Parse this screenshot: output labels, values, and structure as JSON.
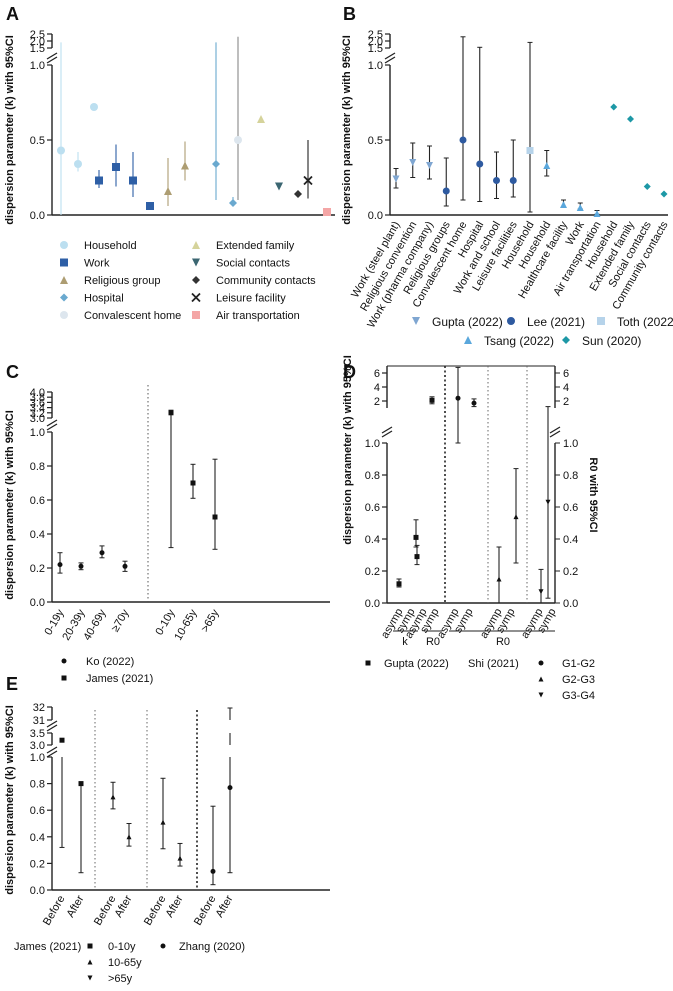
{
  "figure": {
    "ylabel": "dispersion parameter (k) with 95%CI"
  },
  "chart_data": [
    {
      "panel": "A",
      "type": "scatter",
      "title": "",
      "ylabel": "dispersion parameter (k) with 95%CI",
      "y_ticks_lower": [
        "0.0",
        "0.5",
        "1.0"
      ],
      "y_ticks_upper": [
        "1.5",
        "2.0",
        "2.5"
      ],
      "ylim_lower": [
        0,
        1.0
      ],
      "ylim_upper": [
        1.5,
        2.5
      ],
      "legend_items": [
        {
          "label": "Household",
          "color": "#bcdff0",
          "marker": "circle"
        },
        {
          "label": "Work",
          "color": "#2e5fa6",
          "marker": "square"
        },
        {
          "label": "Religious group",
          "color": "#ad9d72",
          "marker": "triangle-up"
        },
        {
          "label": "Hospital",
          "color": "#6aa9cf",
          "marker": "diamond"
        },
        {
          "label": "Convalescent home",
          "color": "#dde6ee",
          "marker": "circle"
        },
        {
          "label": "Extended family",
          "color": "#d5d39b",
          "marker": "triangle-up"
        },
        {
          "label": "Social contacts",
          "color": "#3b6671",
          "marker": "triangle-down"
        },
        {
          "label": "Community contacts",
          "color": "#333333",
          "marker": "diamond"
        },
        {
          "label": "Leisure facility",
          "color": "#222222",
          "marker": "cross"
        },
        {
          "label": "Air transportation",
          "color": "#f4a6a6",
          "marker": "square"
        }
      ],
      "points": [
        {
          "category": "Household",
          "value": 0.43,
          "lo": 0,
          "hi": 1.9,
          "color": "#bcdff0",
          "marker": "circle"
        },
        {
          "category": "Household",
          "value": 0.34,
          "lo": 0.29,
          "hi": 0.42,
          "color": "#bcdff0",
          "marker": "circle"
        },
        {
          "category": "Household",
          "value": 0.72,
          "lo": null,
          "hi": null,
          "color": "#bcdff0",
          "marker": "circle"
        },
        {
          "category": "Work",
          "value": 0.23,
          "lo": 0.18,
          "hi": 0.3,
          "color": "#2e5fa6",
          "marker": "square"
        },
        {
          "category": "Work",
          "value": 0.32,
          "lo": 0.19,
          "hi": 0.47,
          "color": "#2e5fa6",
          "marker": "square"
        },
        {
          "category": "Work",
          "value": 0.23,
          "lo": 0.12,
          "hi": 0.42,
          "color": "#2e5fa6",
          "marker": "square"
        },
        {
          "category": "Work",
          "value": 0.06,
          "lo": null,
          "hi": null,
          "color": "#2e5fa6",
          "marker": "square"
        },
        {
          "category": "Religious group",
          "value": 0.16,
          "lo": 0.06,
          "hi": 0.38,
          "color": "#ad9d72",
          "marker": "triangle-up"
        },
        {
          "category": "Religious group",
          "value": 0.33,
          "lo": 0.23,
          "hi": 0.49,
          "color": "#ad9d72",
          "marker": "triangle-up"
        },
        {
          "category": "Extended family",
          "value": 0.64,
          "lo": null,
          "hi": null,
          "color": "#d5d39b",
          "marker": "triangle-up"
        },
        {
          "category": "Hospital",
          "value": 0.34,
          "lo": 0.1,
          "hi": 1.9,
          "color": "#6aa9cf",
          "marker": "diamond"
        },
        {
          "category": "Hospital",
          "value": 0.08,
          "lo": 0.06,
          "hi": 0.12,
          "color": "#6aa9cf",
          "marker": "diamond"
        },
        {
          "category": "Convalescent home",
          "value": 0.5,
          "lo": 0.1,
          "hi": 2.3,
          "color": "#dde6ee",
          "marker": "circle"
        },
        {
          "category": "Social contacts",
          "value": 0.19,
          "lo": null,
          "hi": null,
          "color": "#3b6671",
          "marker": "triangle-down"
        },
        {
          "category": "Community contacts",
          "value": 0.14,
          "lo": null,
          "hi": null,
          "color": "#333333",
          "marker": "diamond"
        },
        {
          "category": "Leisure facility",
          "value": 0.23,
          "lo": 0.11,
          "hi": 0.5,
          "color": "#222222",
          "marker": "cross"
        },
        {
          "category": "Air transportation",
          "value": 0.02,
          "lo": null,
          "hi": null,
          "color": "#f4a6a6",
          "marker": "square"
        }
      ]
    },
    {
      "panel": "B",
      "type": "scatter",
      "ylabel": "dispersion parameter (k) with 95%CI",
      "y_ticks_lower": [
        "0.0",
        "0.5",
        "1.0"
      ],
      "y_ticks_upper": [
        "1.5",
        "2.0",
        "2.5"
      ],
      "ylim_lower": [
        0,
        1.0
      ],
      "ylim_upper": [
        1.5,
        2.5
      ],
      "categories": [
        "Work (steel plant)",
        "Religious convention",
        "Work (pharma company)",
        "Religious groups",
        "Convalescent home",
        "Hospital",
        "Work and school",
        "Leisure facilities",
        "Household",
        "Household",
        "Healthcare facility",
        "Work",
        "Air transportation",
        "Household",
        "Extended family",
        "Social contacts",
        "Community contacts"
      ],
      "series": [
        {
          "name": "Gupta (2022)",
          "color": "#7fa6d1",
          "marker": "triangle-down"
        },
        {
          "name": "Lee (2021)",
          "color": "#2e5aa0",
          "marker": "circle"
        },
        {
          "name": "Toth (2022)",
          "color": "#b6d3ea",
          "marker": "square"
        },
        {
          "name": "Tsang (2022)",
          "color": "#5aa7dc",
          "marker": "triangle-up"
        },
        {
          "name": "Sun (2020)",
          "color": "#1d98a6",
          "marker": "diamond"
        }
      ],
      "points": [
        {
          "value": 0.24,
          "lo": 0.18,
          "hi": 0.31,
          "series": "Gupta (2022)"
        },
        {
          "value": 0.35,
          "lo": 0.25,
          "hi": 0.48,
          "series": "Gupta (2022)"
        },
        {
          "value": 0.33,
          "lo": 0.24,
          "hi": 0.46,
          "series": "Gupta (2022)"
        },
        {
          "value": 0.16,
          "lo": 0.06,
          "hi": 0.38,
          "series": "Lee (2021)"
        },
        {
          "value": 0.5,
          "lo": 0.1,
          "hi": 2.3,
          "series": "Lee (2021)"
        },
        {
          "value": 0.34,
          "lo": 0.09,
          "hi": 1.55,
          "series": "Lee (2021)"
        },
        {
          "value": 0.23,
          "lo": 0.11,
          "hi": 0.42,
          "series": "Lee (2021)"
        },
        {
          "value": 0.23,
          "lo": 0.12,
          "hi": 0.5,
          "series": "Lee (2021)"
        },
        {
          "value": 0.43,
          "lo": 0.02,
          "hi": 1.9,
          "series": "Toth (2022)"
        },
        {
          "value": 0.33,
          "lo": 0.26,
          "hi": 0.43,
          "series": "Tsang (2022)"
        },
        {
          "value": 0.07,
          "lo": 0.05,
          "hi": 0.1,
          "series": "Tsang (2022)"
        },
        {
          "value": 0.05,
          "lo": 0.04,
          "hi": 0.08,
          "series": "Tsang (2022)"
        },
        {
          "value": 0.01,
          "lo": 0.005,
          "hi": 0.03,
          "series": "Tsang (2022)"
        },
        {
          "value": 0.72,
          "lo": null,
          "hi": null,
          "series": "Sun (2020)"
        },
        {
          "value": 0.64,
          "lo": null,
          "hi": null,
          "series": "Sun (2020)"
        },
        {
          "value": 0.19,
          "lo": null,
          "hi": null,
          "series": "Sun (2020)"
        },
        {
          "value": 0.14,
          "lo": null,
          "hi": null,
          "series": "Sun (2020)"
        }
      ]
    },
    {
      "panel": "C",
      "type": "scatter",
      "ylabel": "dispersion parameter (k) with 95%CI",
      "y_ticks_lower": [
        "0.0",
        "0.2",
        "0.4",
        "0.6",
        "0.8",
        "1.0"
      ],
      "y_ticks_upper": [
        "3.0",
        "3.2",
        "3.4",
        "3.6",
        "3.8",
        "4.0"
      ],
      "ylim_lower": [
        0,
        1.0
      ],
      "ylim_upper": [
        3.0,
        4.0
      ],
      "categories": [
        "0-19y",
        "20-39y",
        "40-69y",
        "≥70y",
        "0-10y",
        "10-65y",
        ">65y"
      ],
      "series": [
        {
          "name": "Ko (2022)",
          "marker": "circle"
        },
        {
          "name": "James (2021)",
          "marker": "square"
        }
      ],
      "points": [
        {
          "category": "0-19y",
          "value": 0.22,
          "lo": 0.17,
          "hi": 0.29,
          "series": "Ko (2022)"
        },
        {
          "category": "20-39y",
          "value": 0.21,
          "lo": 0.19,
          "hi": 0.23,
          "series": "Ko (2022)"
        },
        {
          "category": "40-69y",
          "value": 0.29,
          "lo": 0.26,
          "hi": 0.33,
          "series": "Ko (2022)"
        },
        {
          "category": "≥70y",
          "value": 0.21,
          "lo": 0.18,
          "hi": 0.24,
          "series": "Ko (2022)"
        },
        {
          "category": "0-10y",
          "value": 3.2,
          "lo": 0.32,
          "hi": 3.3,
          "series": "James (2021)"
        },
        {
          "category": "10-65y",
          "value": 0.7,
          "lo": 0.61,
          "hi": 0.81,
          "series": "James (2021)"
        },
        {
          "category": ">65y",
          "value": 0.5,
          "lo": 0.31,
          "hi": 0.84,
          "series": "James (2021)"
        }
      ]
    },
    {
      "panel": "D",
      "type": "scatter",
      "ylabel": "dispersion parameter (k) with 95%CI",
      "ylabel_right": "R0 with 95%CI",
      "y_ticks_lower": [
        "0.0",
        "0.2",
        "0.4",
        "0.6",
        "0.8",
        "1.0"
      ],
      "y_ticks_upper": [
        "2",
        "4",
        "6"
      ],
      "ylim_lower": [
        0,
        1.0
      ],
      "ylim_upper": [
        1.0,
        7.0
      ],
      "categories": [
        "asymp",
        "symp",
        "asymp",
        "symp",
        "asymp",
        "symp",
        "asymp",
        "symp",
        "asymp",
        "symp"
      ],
      "group_labels": [
        {
          "label": "k"
        },
        {
          "label": "R0"
        },
        {
          "label": "R0"
        }
      ],
      "series": [
        {
          "name": "Gupta (2022)",
          "marker": "square"
        },
        {
          "name": "Shi (2021)",
          "marker": ""
        },
        {
          "name": "G1-G2",
          "marker": "circle"
        },
        {
          "name": "G2-G3",
          "marker": "triangle-up"
        },
        {
          "name": "G3-G4",
          "marker": "triangle-down"
        }
      ],
      "points": [
        {
          "value": 0.12,
          "lo": 0.1,
          "hi": 0.15,
          "series": "Gupta (2022)"
        },
        {
          "value": 0.29,
          "lo": 0.24,
          "hi": 0.36,
          "series": "Gupta (2022)"
        },
        {
          "value": 0.41,
          "lo": 0.35,
          "hi": 0.52,
          "series": "Gupta (2022)"
        },
        {
          "value": 2.1,
          "lo": 1.6,
          "hi": 2.6,
          "series": "Gupta (2022)"
        },
        {
          "value": 2.4,
          "lo": 1.0,
          "hi": 6.8,
          "series": "G1-G2"
        },
        {
          "value": 1.7,
          "lo": 1.2,
          "hi": 2.3,
          "series": "G1-G2"
        },
        {
          "value": 0.15,
          "lo": 0.0,
          "hi": 0.35,
          "series": "G2-G3"
        },
        {
          "value": 0.54,
          "lo": 0.25,
          "hi": 0.84,
          "series": "G2-G3"
        },
        {
          "value": 0.07,
          "lo": 0.0,
          "hi": 0.21,
          "series": "G3-G4"
        },
        {
          "value": 0.63,
          "lo": 0.03,
          "hi": 1.2,
          "series": "G3-G4"
        }
      ]
    },
    {
      "panel": "E",
      "type": "scatter",
      "ylabel": "dispersion parameter (k) with 95%CI",
      "y_ticks_lower": [
        "0.0",
        "0.2",
        "0.4",
        "0.6",
        "0.8",
        "1.0"
      ],
      "y_ticks_upper": [
        "3.0",
        "3.5",
        "31",
        "32"
      ],
      "ylim_lower": [
        0,
        1.0
      ],
      "categories": [
        "Before",
        "After",
        "Before",
        "After",
        "Before",
        "After",
        "Before",
        "After"
      ],
      "series": [
        {
          "name": "James (2021)",
          "marker": ""
        },
        {
          "name": "0-10y",
          "marker": "square"
        },
        {
          "name": "10-65y",
          "marker": "triangle-up"
        },
        {
          "name": ">65y",
          "marker": "triangle-down"
        },
        {
          "name": "Zhang (2020)",
          "marker": "circle"
        }
      ],
      "points": [
        {
          "value": 3.2,
          "lo": 0.32,
          "hi": 3.3,
          "series": "0-10y"
        },
        {
          "value": 0.8,
          "lo": 0.13,
          "hi": 0.8,
          "series": "0-10y"
        },
        {
          "value": 0.7,
          "lo": 0.61,
          "hi": 0.81,
          "series": "10-65y"
        },
        {
          "value": 0.4,
          "lo": 0.33,
          "hi": 0.5,
          "series": "10-65y"
        },
        {
          "value": 0.51,
          "lo": 0.31,
          "hi": 0.84,
          "series": "10-65y"
        },
        {
          "value": 0.24,
          "lo": 0.18,
          "hi": 0.35,
          "series": "10-65y"
        },
        {
          "value": 0.14,
          "lo": 0.04,
          "hi": 0.63,
          "series": "Zhang (2020)"
        },
        {
          "value": 0.77,
          "lo": 0.13,
          "hi": 31.5,
          "series": "Zhang (2020)"
        }
      ]
    }
  ],
  "labels": {
    "A": "A",
    "B": "B",
    "C": "C",
    "D": "D",
    "E": "E"
  }
}
